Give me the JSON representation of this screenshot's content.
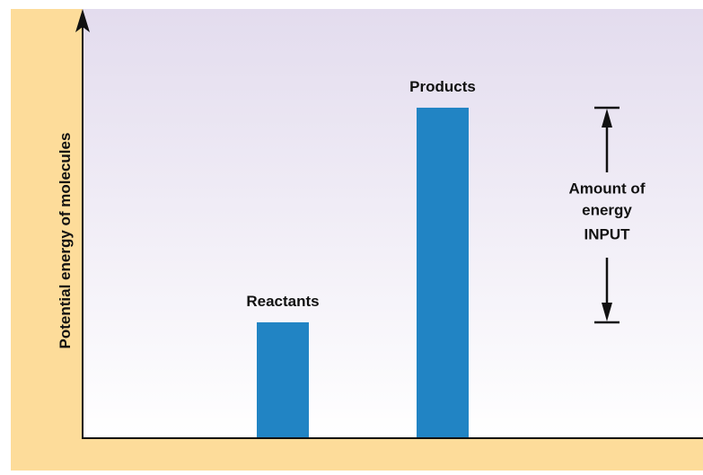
{
  "chart_data": {
    "type": "bar",
    "title": "",
    "xlabel": "",
    "ylabel": "Potential energy of molecules",
    "categories": [
      "Reactants",
      "Products"
    ],
    "values": [
      27,
      77
    ],
    "ylim": [
      0,
      100
    ],
    "grid": false,
    "axis_ticks": false,
    "annotation": {
      "lines": [
        "Amount of",
        "energy",
        "INPUT"
      ],
      "from_category": "Reactants",
      "to_category": "Products"
    },
    "colors": {
      "bar": "#2184c4",
      "frame": "#fddc9a",
      "plot_top": "#e3dcee",
      "plot_bottom": "#ffffff",
      "ink": "#111111"
    }
  }
}
